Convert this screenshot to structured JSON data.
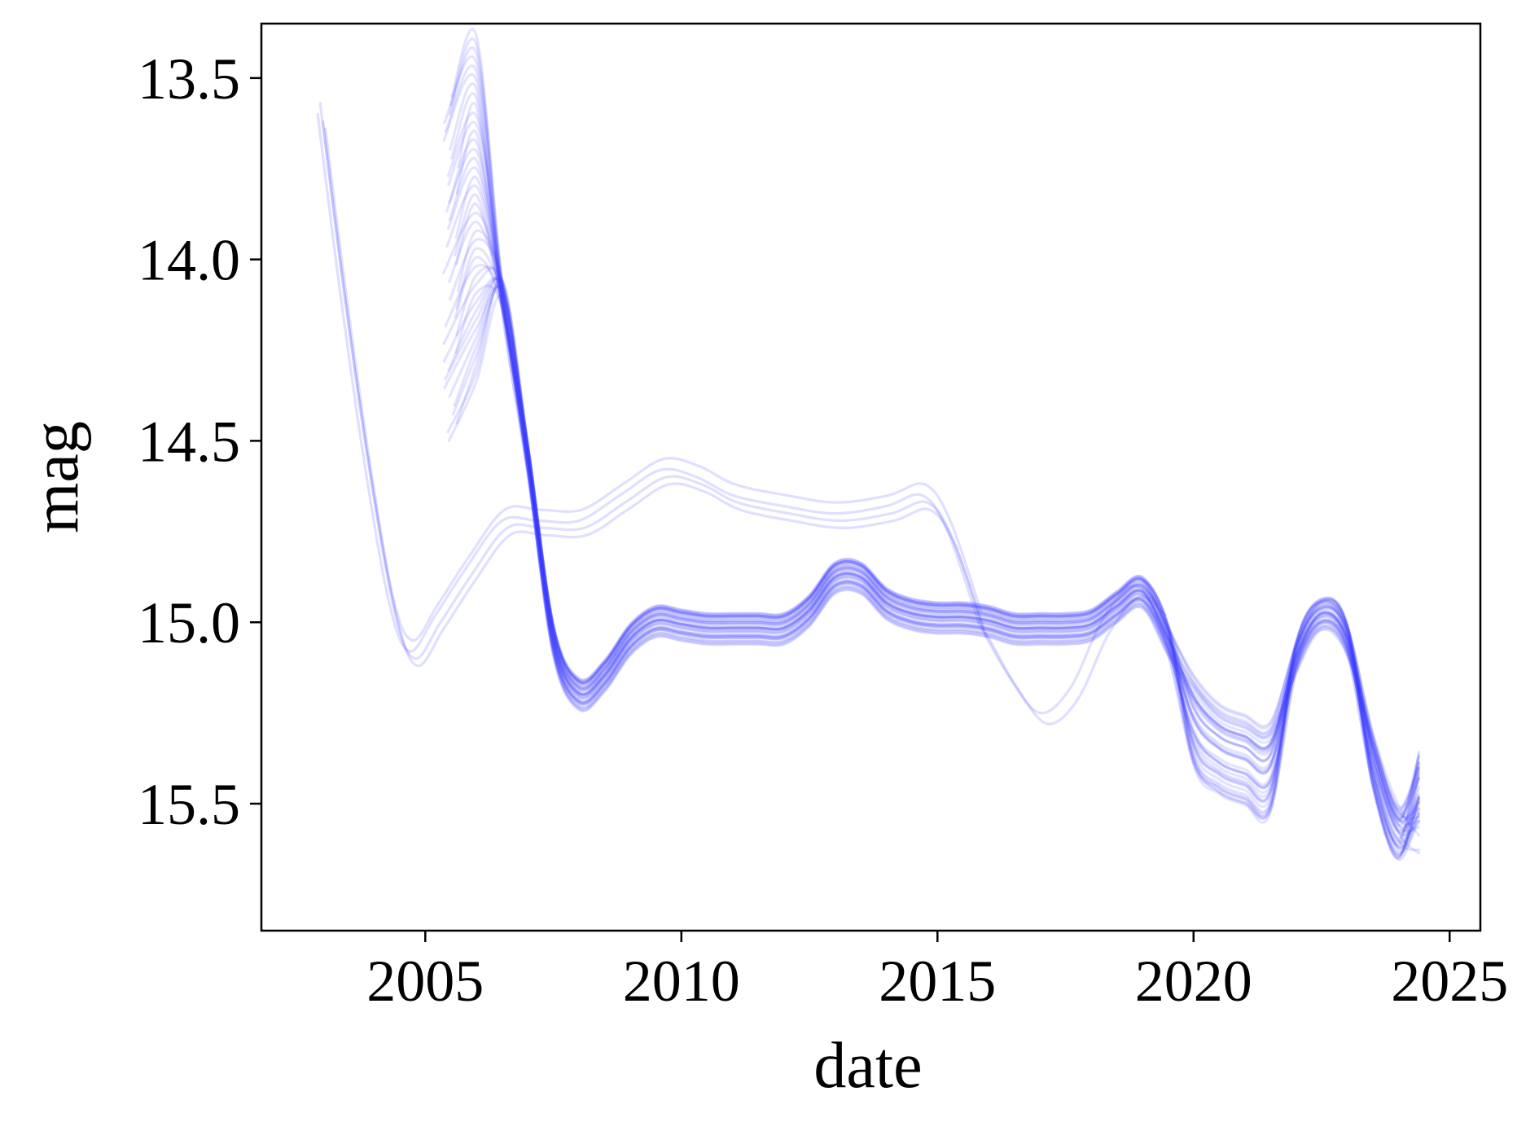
{
  "chart_data": {
    "type": "line",
    "xlabel": "date",
    "ylabel": "mag",
    "xlim": [
      2001.8,
      2025.6
    ],
    "ylim": [
      15.85,
      13.35
    ],
    "y_inverted": true,
    "grid": false,
    "legend": "none",
    "line_color": "#3a3aff",
    "line_opacity": 0.14,
    "x_ticks": [
      {
        "value": 2005,
        "label": "2005"
      },
      {
        "value": 2010,
        "label": "2010"
      },
      {
        "value": 2015,
        "label": "2015"
      },
      {
        "value": 2020,
        "label": "2020"
      },
      {
        "value": 2025,
        "label": "2025"
      }
    ],
    "y_ticks": [
      {
        "value": 13.5,
        "label": "13.5"
      },
      {
        "value": 14.0,
        "label": "14.0"
      },
      {
        "value": 14.5,
        "label": "14.5"
      },
      {
        "value": 15.0,
        "label": "15.0"
      },
      {
        "value": 15.5,
        "label": "15.5"
      }
    ],
    "series_groups": [
      {
        "id": "early-branch",
        "count": 4,
        "offsets": [
          [
            0.0,
            0.0
          ],
          [
            0.05,
            -0.03
          ],
          [
            0.1,
            0.02
          ],
          [
            0.15,
            0.04
          ]
        ],
        "x": [
          2002.9,
          2003.3,
          2003.8,
          2004.3,
          2004.7,
          2005.2,
          2005.8,
          2006.5,
          2007.2,
          2008.0,
          2008.8,
          2009.6,
          2010.3,
          2011.0,
          2012.0,
          2013.0,
          2014.0,
          2014.7,
          2015.2,
          2015.8
        ],
        "y": [
          13.6,
          14.05,
          14.55,
          14.95,
          15.08,
          14.98,
          14.85,
          14.72,
          14.72,
          14.72,
          14.65,
          14.58,
          14.6,
          14.65,
          14.68,
          14.7,
          14.68,
          14.65,
          14.75,
          15.0
        ]
      },
      {
        "id": "dip-branch",
        "count": 2,
        "offsets": [
          [
            0.0,
            0.0
          ],
          [
            0.15,
            0.03
          ]
        ],
        "x": [
          2015.8,
          2016.4,
          2017.0,
          2017.6,
          2018.2,
          2018.8,
          2019.3
        ],
        "y": [
          15.0,
          15.15,
          15.25,
          15.18,
          15.0,
          14.9,
          14.95
        ]
      },
      {
        "id": "main-ensemble",
        "count": 40,
        "x": [
          2005.5,
          2006.0,
          2006.5,
          2007.0,
          2007.5,
          2008.0,
          2008.5,
          2009.0,
          2009.5,
          2010.0,
          2010.5,
          2011.0,
          2011.5,
          2012.0,
          2012.5,
          2013.0,
          2013.5,
          2014.0,
          2014.5,
          2015.0,
          2015.5,
          2016.0,
          2016.5,
          2017.0,
          2017.5,
          2018.0,
          2018.5,
          2019.0,
          2019.5,
          2020.0,
          2020.5,
          2021.0,
          2021.5,
          2022.0,
          2022.5,
          2023.0,
          2023.5,
          2024.0,
          2024.4
        ],
        "y": [
          14.1,
          13.95,
          14.1,
          14.55,
          15.05,
          15.2,
          15.15,
          15.05,
          15.0,
          15.01,
          15.02,
          15.02,
          15.02,
          15.02,
          14.97,
          14.88,
          14.88,
          14.95,
          14.98,
          14.99,
          14.99,
          15.0,
          15.02,
          15.02,
          15.02,
          15.01,
          14.96,
          14.92,
          15.05,
          15.22,
          15.3,
          15.33,
          15.35,
          15.1,
          14.98,
          15.05,
          15.35,
          15.55,
          15.45
        ],
        "start_spread": [
          13.55,
          14.5
        ],
        "end_spread": [
          15.35,
          15.65
        ]
      }
    ]
  }
}
